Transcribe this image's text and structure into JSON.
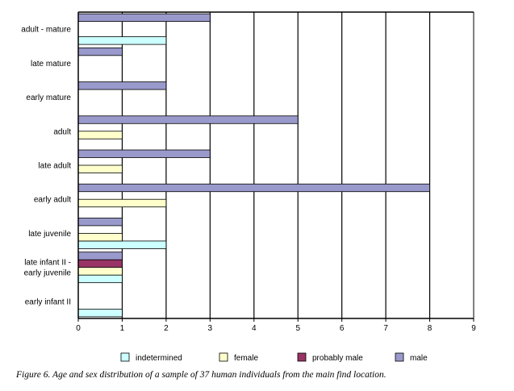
{
  "chart_data": {
    "type": "bar",
    "orientation": "horizontal",
    "categories": [
      [
        "early infant  II"
      ],
      [
        "late infant  II -",
        "early juvenile"
      ],
      [
        "late juvenile"
      ],
      [
        "early adult"
      ],
      [
        "late adult"
      ],
      [
        "adult"
      ],
      [
        "early mature"
      ],
      [
        "late mature"
      ],
      [
        "adult - mature"
      ]
    ],
    "series": [
      {
        "name": "indetermined",
        "color": "#ccffff",
        "values": [
          1,
          1,
          2,
          0,
          0,
          0,
          0,
          0,
          2
        ]
      },
      {
        "name": "female",
        "color": "#ffffcc",
        "values": [
          0,
          1,
          1,
          2,
          1,
          1,
          0,
          0,
          0
        ]
      },
      {
        "name": "probably male",
        "color": "#993366",
        "values": [
          0,
          1,
          0,
          0,
          0,
          0,
          0,
          0,
          0
        ]
      },
      {
        "name": "male",
        "color": "#9999cc",
        "values": [
          0,
          1,
          1,
          8,
          3,
          5,
          2,
          1,
          3
        ]
      }
    ],
    "xlim": [
      0,
      9
    ],
    "xticks": [
      "0",
      "1",
      "2",
      "3",
      "4",
      "5",
      "6",
      "7",
      "8",
      "9"
    ],
    "grid": true,
    "legend_position": "bottom",
    "xlabel": "",
    "ylabel": ""
  },
  "caption": "Figure 6.  Age and sex distribution of a sample of 37 human individuals from the main find location."
}
